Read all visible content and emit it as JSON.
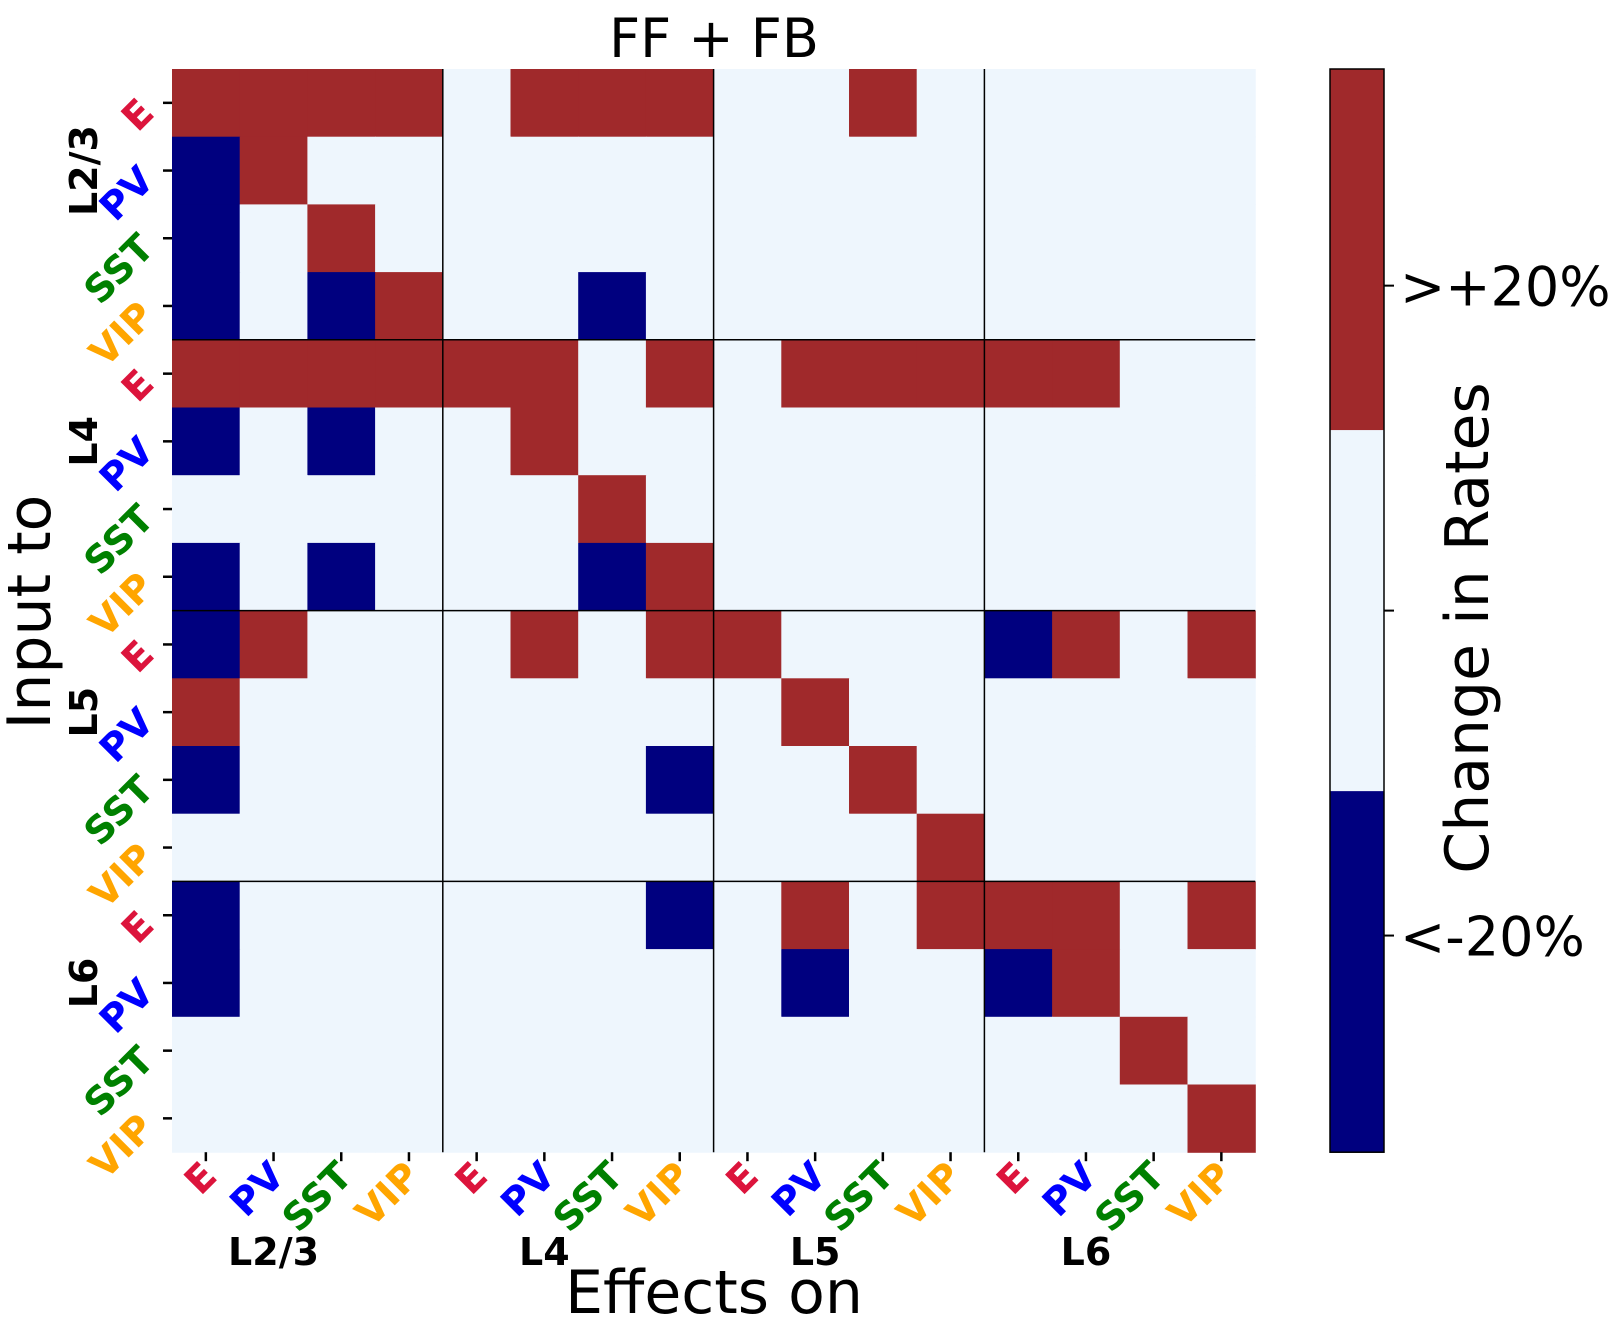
{
  "chart_data": {
    "type": "heatmap",
    "title": "FF + FB",
    "xlabel": "Effects on",
    "ylabel": "Input to",
    "colorbar_label": "Change in Rates",
    "colorbar_ticks": [
      ">+20%",
      "",
      "<-20%"
    ],
    "layers": [
      "L2/3",
      "L4",
      "L5",
      "L6"
    ],
    "cell_types": [
      "E",
      "PV",
      "SST",
      "VIP"
    ],
    "type_colors": {
      "E": "#dc143c",
      "PV": "#0000ff",
      "SST": "#008000",
      "VIP": "#ffa500"
    },
    "value_colors": {
      "1": "#a0292b",
      "0": "#eef6fd",
      "-1": "#00007f"
    },
    "values": [
      [
        1,
        1,
        1,
        1,
        0,
        1,
        1,
        1,
        0,
        0,
        1,
        0,
        0,
        0,
        0,
        0
      ],
      [
        -1,
        1,
        0,
        0,
        0,
        0,
        0,
        0,
        0,
        0,
        0,
        0,
        0,
        0,
        0,
        0
      ],
      [
        -1,
        0,
        1,
        0,
        0,
        0,
        0,
        0,
        0,
        0,
        0,
        0,
        0,
        0,
        0,
        0
      ],
      [
        -1,
        0,
        -1,
        1,
        0,
        0,
        -1,
        0,
        0,
        0,
        0,
        0,
        0,
        0,
        0,
        0
      ],
      [
        1,
        1,
        1,
        1,
        1,
        1,
        0,
        1,
        0,
        1,
        1,
        1,
        1,
        1,
        0,
        0
      ],
      [
        -1,
        0,
        -1,
        0,
        0,
        1,
        0,
        0,
        0,
        0,
        0,
        0,
        0,
        0,
        0,
        0
      ],
      [
        0,
        0,
        0,
        0,
        0,
        0,
        1,
        0,
        0,
        0,
        0,
        0,
        0,
        0,
        0,
        0
      ],
      [
        -1,
        0,
        -1,
        0,
        0,
        0,
        -1,
        1,
        0,
        0,
        0,
        0,
        0,
        0,
        0,
        0
      ],
      [
        -1,
        1,
        0,
        0,
        0,
        1,
        0,
        1,
        1,
        0,
        0,
        0,
        -1,
        1,
        0,
        1
      ],
      [
        1,
        0,
        0,
        0,
        0,
        0,
        0,
        0,
        0,
        1,
        0,
        0,
        0,
        0,
        0,
        0
      ],
      [
        -1,
        0,
        0,
        0,
        0,
        0,
        0,
        -1,
        0,
        0,
        1,
        0,
        0,
        0,
        0,
        0
      ],
      [
        0,
        0,
        0,
        0,
        0,
        0,
        0,
        0,
        0,
        0,
        0,
        1,
        0,
        0,
        0,
        0
      ],
      [
        -1,
        0,
        0,
        0,
        0,
        0,
        0,
        -1,
        0,
        1,
        0,
        1,
        1,
        1,
        0,
        1
      ],
      [
        -1,
        0,
        0,
        0,
        0,
        0,
        0,
        0,
        0,
        -1,
        0,
        0,
        -1,
        1,
        0,
        0
      ],
      [
        0,
        0,
        0,
        0,
        0,
        0,
        0,
        0,
        0,
        0,
        0,
        0,
        0,
        0,
        1,
        0
      ],
      [
        0,
        0,
        0,
        0,
        0,
        0,
        0,
        0,
        0,
        0,
        0,
        0,
        0,
        0,
        0,
        1
      ]
    ]
  }
}
